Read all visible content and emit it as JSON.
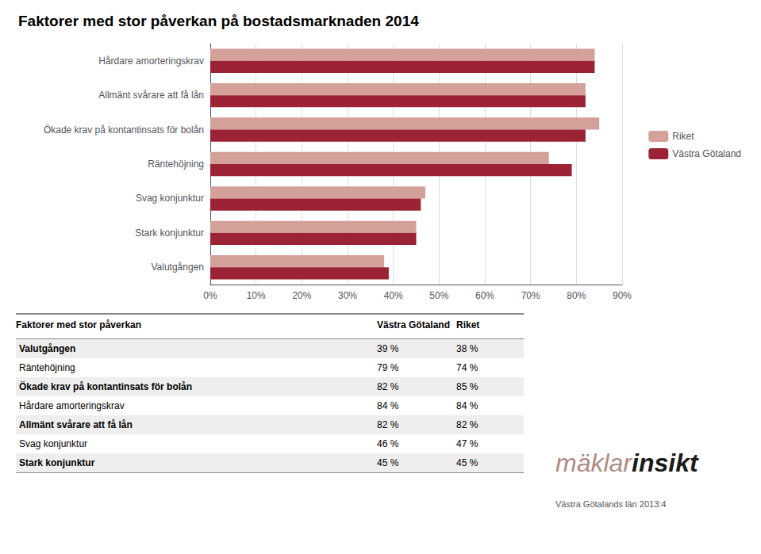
{
  "chart_data": {
    "type": "bar",
    "orientation": "horizontal",
    "title": "Faktorer med stor påverkan på bostadsmarknaden 2014",
    "categories": [
      "Hårdare amorteringskrav",
      "Allmänt svårare att få lån",
      "Ökade krav på kontantinsats för bolån",
      "Räntehöjning",
      "Svag konjunktur",
      "Stark konjunktur",
      "Valutgången"
    ],
    "series": [
      {
        "name": "Riket",
        "color": "#d4a09a",
        "values": [
          0.84,
          0.82,
          0.85,
          0.74,
          0.47,
          0.45,
          0.38
        ]
      },
      {
        "name": "Västra Götaland",
        "color": "#9b2335",
        "values": [
          0.84,
          0.82,
          0.82,
          0.79,
          0.46,
          0.45,
          0.39
        ]
      }
    ],
    "xlim": [
      0.0,
      0.9
    ],
    "xticks": [
      {
        "value": 0.0,
        "label": "0%"
      },
      {
        "value": 0.1,
        "label": "10%"
      },
      {
        "value": 0.2,
        "label": "20%"
      },
      {
        "value": 0.3,
        "label": "30%"
      },
      {
        "value": 0.4,
        "label": "40%"
      },
      {
        "value": 0.5,
        "label": "50%"
      },
      {
        "value": 0.6,
        "label": "60%"
      },
      {
        "value": 0.7,
        "label": "70%"
      },
      {
        "value": 0.8,
        "label": "80%"
      },
      {
        "value": 0.9,
        "label": "90%"
      }
    ],
    "grid": true,
    "legend": "right",
    "table": {
      "header": [
        "Faktorer med stor påverkan",
        "Västra Götaland",
        "Riket"
      ],
      "rows": [
        [
          "Valutgången",
          "39 %",
          "38 %"
        ],
        [
          "Räntehöjning",
          "79 %",
          "74 %"
        ],
        [
          "Ökade krav på kontantinsats för bolån",
          "82 %",
          "85 %"
        ],
        [
          "Hårdare amorteringskrav",
          "84 %",
          "84 %"
        ],
        [
          "Allmänt svårare att få lån",
          "82 %",
          "82 %"
        ],
        [
          "Svag konjunktur",
          "46 %",
          "47 %"
        ],
        [
          "Stark konjunktur",
          "45 %",
          "45 %"
        ]
      ]
    },
    "annotations": [
      "mäklar",
      "insikt",
      "Västra Götalands län 2013:4"
    ]
  }
}
